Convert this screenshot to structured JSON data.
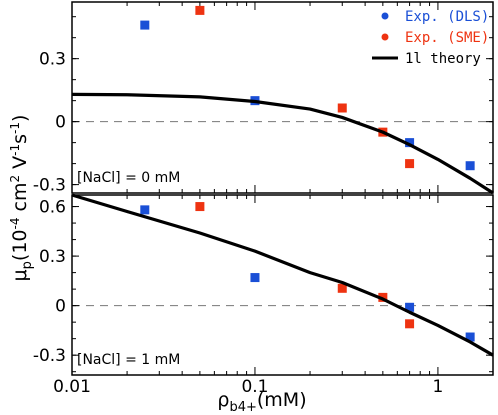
{
  "chart_data": [
    {
      "type": "scatter",
      "panel": "top",
      "xscale": "log",
      "xlim": [
        0.01,
        2
      ],
      "ylim": [
        -0.34,
        0.57
      ],
      "yticks": [
        {
          "value": 0.3,
          "label": "0.3"
        },
        {
          "value": 0.0,
          "label": "0"
        },
        {
          "value": -0.3,
          "label": "-0.3"
        }
      ],
      "reference_line_y": 0,
      "annotation": "[NaCl] = 0 mM",
      "series": [
        {
          "name": "Exp. (DLS)",
          "color": "#1a4fd6",
          "points": [
            [
              0.025,
              0.46
            ],
            [
              0.1,
              0.1
            ],
            [
              0.7,
              -0.1
            ],
            [
              1.5,
              -0.21
            ]
          ]
        },
        {
          "name": "Exp. (SME)",
          "color": "#ee3311",
          "points": [
            [
              0.05,
              0.53
            ],
            [
              0.3,
              0.065
            ],
            [
              0.5,
              -0.05
            ],
            [
              0.7,
              -0.2
            ]
          ]
        },
        {
          "name": "1l theory",
          "color": "#000000",
          "kind": "line",
          "points": [
            [
              0.01,
              0.13
            ],
            [
              0.02,
              0.128
            ],
            [
              0.05,
              0.118
            ],
            [
              0.1,
              0.096
            ],
            [
              0.2,
              0.06
            ],
            [
              0.3,
              0.02
            ],
            [
              0.5,
              -0.05
            ],
            [
              0.7,
              -0.11
            ],
            [
              1.0,
              -0.18
            ],
            [
              1.5,
              -0.27
            ],
            [
              2.0,
              -0.34
            ]
          ]
        }
      ]
    },
    {
      "type": "scatter",
      "panel": "bottom",
      "xscale": "log",
      "xlim": [
        0.01,
        2
      ],
      "ylim": [
        -0.42,
        0.67
      ],
      "yticks": [
        {
          "value": 0.6,
          "label": "0.6"
        },
        {
          "value": 0.3,
          "label": "0.3"
        },
        {
          "value": 0.0,
          "label": "0"
        },
        {
          "value": -0.3,
          "label": "-0.3"
        }
      ],
      "reference_line_y": 0,
      "annotation": "[NaCl] = 1 mM",
      "series": [
        {
          "name": "Exp. (DLS)",
          "color": "#1a4fd6",
          "points": [
            [
              0.025,
              0.58
            ],
            [
              0.1,
              0.17
            ],
            [
              0.7,
              -0.01
            ],
            [
              1.5,
              -0.19
            ]
          ]
        },
        {
          "name": "Exp. (SME)",
          "color": "#ee3311",
          "points": [
            [
              0.05,
              0.6
            ],
            [
              0.3,
              0.105
            ],
            [
              0.5,
              0.05
            ],
            [
              0.7,
              -0.11
            ]
          ]
        },
        {
          "name": "1l theory",
          "color": "#000000",
          "kind": "line",
          "points": [
            [
              0.01,
              0.67
            ],
            [
              0.02,
              0.57
            ],
            [
              0.05,
              0.44
            ],
            [
              0.1,
              0.33
            ],
            [
              0.2,
              0.2
            ],
            [
              0.3,
              0.14
            ],
            [
              0.5,
              0.04
            ],
            [
              0.7,
              -0.04
            ],
            [
              1.0,
              -0.12
            ],
            [
              1.5,
              -0.22
            ],
            [
              2.0,
              -0.3
            ]
          ]
        }
      ]
    }
  ],
  "legend": {
    "placement": "top-right",
    "items": [
      {
        "label": "Exp. (DLS)",
        "color": "#1a4fd6",
        "marker": "dot"
      },
      {
        "label": "Exp. (SME)",
        "color": "#ee3311",
        "marker": "dot"
      },
      {
        "label": "1l theory",
        "color": "#000000",
        "marker": "line"
      }
    ]
  },
  "xaxis": {
    "ticks": [
      {
        "value": 0.01,
        "label": "0.01"
      },
      {
        "value": 0.1,
        "label": "0.1"
      },
      {
        "value": 1,
        "label": "1"
      }
    ]
  },
  "labels": {
    "y_main": "μ",
    "y_sub": "p",
    "y_rest": "(10",
    "y_exp1": "-4",
    "y_unit1": " cm",
    "y_exp2": "2",
    "y_unit2": " V",
    "y_exp3": "-1",
    "y_unit3": "s",
    "y_exp4": "-1",
    "y_close": ")",
    "x_main": "ρ",
    "x_sub": "b4+",
    "x_unit": "(mM)"
  }
}
